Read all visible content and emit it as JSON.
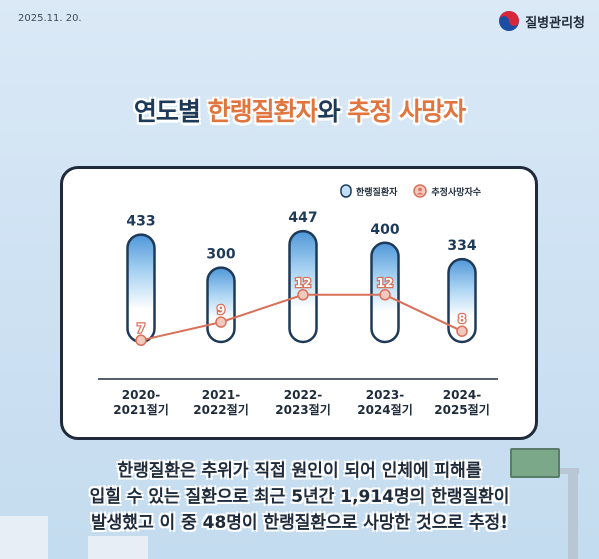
{
  "date": "2025.11. 20.",
  "agency_name": "질병관리청",
  "title": {
    "prefix": "연도별 ",
    "accent1": "한랭질환자",
    "middle": "와 ",
    "accent2": "추정 사망자"
  },
  "legend": {
    "patients": "한랭질환자",
    "deaths": "추정사망자수"
  },
  "colors": {
    "accent": "#e0753f",
    "navy": "#1f3a58",
    "bar_blue": "#4f97d8",
    "death_line": "#d9705a"
  },
  "chart_data": {
    "type": "bar",
    "categories": [
      [
        "2020-",
        "2021절기"
      ],
      [
        "2021-",
        "2022절기"
      ],
      [
        "2022-",
        "2023절기"
      ],
      [
        "2023-",
        "2024절기"
      ],
      [
        "2024-",
        "2025절기"
      ]
    ],
    "series": [
      {
        "name": "한랭질환자",
        "type": "bar",
        "values": [
          433,
          300,
          447,
          400,
          334
        ]
      },
      {
        "name": "추정사망자수",
        "type": "line",
        "values": [
          7,
          9,
          12,
          12,
          8
        ]
      }
    ]
  },
  "description": [
    "한랭질환은 추위가 직접 원인이 되어 인체에 피해를",
    "입힐 수 있는 질환으로 최근 5년간 1,914명의 한랭질환이",
    "발생했고 이 중 48명이 한랭질환으로 사망한 것으로 추정!"
  ]
}
